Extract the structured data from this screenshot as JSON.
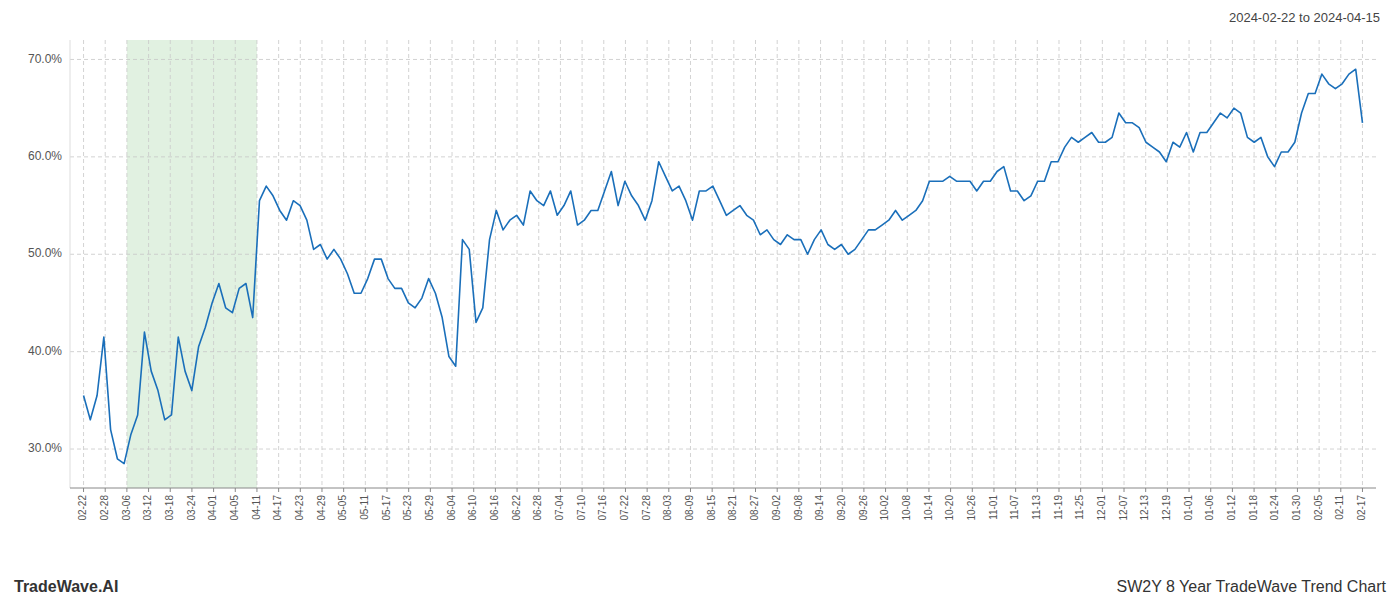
{
  "chart_data": {
    "type": "line",
    "title": "2024-02-22 to 2024-04-15",
    "annotations": [
      "TradeWave.AI",
      "SW2Y 8 Year TradeWave Trend Chart"
    ],
    "color": "#1a6fba",
    "grid": true,
    "span": {
      "from": "03-06",
      "to": "04-11",
      "color": "#c8e6c8"
    },
    "xlim": [
      -2,
      191
    ],
    "xticks": [
      {
        "value": 0,
        "label": "02-22"
      },
      {
        "value": 3.2034,
        "label": "02-28"
      },
      {
        "value": 6.4068,
        "label": "03-06"
      },
      {
        "value": 9.6102,
        "label": "03-12"
      },
      {
        "value": 12.8136,
        "label": "03-18"
      },
      {
        "value": 16.0169,
        "label": "03-24"
      },
      {
        "value": 19.2203,
        "label": "04-01"
      },
      {
        "value": 22.4237,
        "label": "04-05"
      },
      {
        "value": 25.6271,
        "label": "04-11"
      },
      {
        "value": 28.8305,
        "label": "04-17"
      },
      {
        "value": 32.0339,
        "label": "04-23"
      },
      {
        "value": 35.2373,
        "label": "04-29"
      },
      {
        "value": 38.4407,
        "label": "05-05"
      },
      {
        "value": 41.6441,
        "label": "05-11"
      },
      {
        "value": 44.8475,
        "label": "05-17"
      },
      {
        "value": 48.0508,
        "label": "05-23"
      },
      {
        "value": 51.2542,
        "label": "05-29"
      },
      {
        "value": 54.4576,
        "label": "06-04"
      },
      {
        "value": 57.661,
        "label": "06-10"
      },
      {
        "value": 60.8644,
        "label": "06-16"
      },
      {
        "value": 64.0678,
        "label": "06-22"
      },
      {
        "value": 67.2712,
        "label": "06-28"
      },
      {
        "value": 70.4746,
        "label": "07-04"
      },
      {
        "value": 73.678,
        "label": "07-10"
      },
      {
        "value": 76.8814,
        "label": "07-16"
      },
      {
        "value": 80.0847,
        "label": "07-22"
      },
      {
        "value": 83.2881,
        "label": "07-28"
      },
      {
        "value": 86.4915,
        "label": "08-03"
      },
      {
        "value": 89.6949,
        "label": "08-09"
      },
      {
        "value": 92.8983,
        "label": "08-15"
      },
      {
        "value": 96.1017,
        "label": "08-21"
      },
      {
        "value": 99.3051,
        "label": "08-27"
      },
      {
        "value": 102.5085,
        "label": "09-02"
      },
      {
        "value": 105.7119,
        "label": "09-08"
      },
      {
        "value": 108.9153,
        "label": "09-14"
      },
      {
        "value": 112.1186,
        "label": "09-20"
      },
      {
        "value": 115.322,
        "label": "09-26"
      },
      {
        "value": 118.5254,
        "label": "10-02"
      },
      {
        "value": 121.7288,
        "label": "10-08"
      },
      {
        "value": 124.9322,
        "label": "10-14"
      },
      {
        "value": 128.1356,
        "label": "10-20"
      },
      {
        "value": 131.339,
        "label": "10-26"
      },
      {
        "value": 134.5424,
        "label": "11-01"
      },
      {
        "value": 137.7458,
        "label": "11-07"
      },
      {
        "value": 140.9492,
        "label": "11-13"
      },
      {
        "value": 144.1525,
        "label": "11-19"
      },
      {
        "value": 147.3559,
        "label": "11-25"
      },
      {
        "value": 150.5593,
        "label": "12-01"
      },
      {
        "value": 153.7627,
        "label": "12-07"
      },
      {
        "value": 156.9661,
        "label": "12-13"
      },
      {
        "value": 160.1695,
        "label": "12-19"
      },
      {
        "value": 163.3729,
        "label": "01-01"
      },
      {
        "value": 166.5763,
        "label": "01-06"
      },
      {
        "value": 169.7797,
        "label": "01-12"
      },
      {
        "value": 172.9831,
        "label": "01-18"
      },
      {
        "value": 176.1864,
        "label": "01-24"
      },
      {
        "value": 179.3898,
        "label": "01-30"
      },
      {
        "value": 182.5932,
        "label": "02-05"
      },
      {
        "value": 185.7966,
        "label": "02-11"
      },
      {
        "value": 189,
        "label": "02-17"
      }
    ],
    "ylim": [
      26.0,
      72.0
    ],
    "yticks": [
      {
        "value": 30.0,
        "label": "30.0%"
      },
      {
        "value": 40.0,
        "label": "40.0%"
      },
      {
        "value": 50.0,
        "label": "50.0%"
      },
      {
        "value": 60.0,
        "label": "60.0%"
      },
      {
        "value": 70.0,
        "label": "70.0%"
      }
    ],
    "values": [
      35.5,
      33.0,
      35.5,
      41.5,
      32.0,
      29.0,
      28.5,
      31.5,
      33.5,
      42.0,
      38.0,
      36.0,
      33.0,
      33.5,
      41.5,
      38.0,
      36.0,
      40.5,
      42.5,
      45.0,
      47.0,
      44.5,
      44.0,
      46.5,
      47.0,
      43.5,
      55.5,
      57.0,
      56.0,
      54.5,
      53.5,
      55.5,
      55.0,
      53.5,
      50.5,
      51.0,
      49.5,
      50.5,
      49.5,
      48.0,
      46.0,
      46.0,
      47.5,
      49.5,
      49.5,
      47.5,
      46.5,
      46.5,
      45.0,
      44.5,
      45.5,
      47.5,
      46.0,
      43.5,
      39.5,
      38.5,
      51.5,
      50.5,
      43.0,
      44.5,
      51.5,
      54.5,
      52.5,
      53.5,
      54.0,
      53.0,
      56.5,
      55.5,
      55.0,
      56.5,
      54.0,
      55.0,
      56.5,
      53.0,
      53.5,
      54.5,
      54.5,
      56.5,
      58.5,
      55.0,
      57.5,
      56.0,
      55.0,
      53.5,
      55.5,
      59.5,
      58.0,
      56.5,
      57.0,
      55.5,
      53.5,
      56.5,
      56.5,
      57.0,
      55.5,
      54.0,
      54.5,
      55.0,
      54.0,
      53.5,
      52.0,
      52.5,
      51.5,
      51.0,
      52.0,
      51.5,
      51.5,
      50.0,
      51.5,
      52.5,
      51.0,
      50.5,
      51.0,
      50.0,
      50.5,
      51.5,
      52.5,
      52.5,
      53.0,
      53.5,
      54.5,
      53.5,
      54.0,
      54.5,
      55.5,
      57.5,
      57.5,
      57.5,
      58.0,
      57.5,
      57.5,
      57.5,
      56.5,
      57.5,
      57.5,
      58.5,
      59.0,
      56.5,
      56.5,
      55.5,
      56.0,
      57.5,
      57.5,
      59.5,
      59.5,
      61.0,
      62.0,
      61.5,
      62.0,
      62.5,
      61.5,
      61.5,
      62.0,
      64.5,
      63.5,
      63.5,
      63.0,
      61.5,
      61.0,
      60.5,
      59.5,
      61.5,
      61.0,
      62.5,
      60.5,
      62.5,
      62.5,
      63.5,
      64.5,
      64.0,
      65.0,
      64.5,
      62.0,
      61.5,
      62.0,
      60.0,
      59.0,
      60.5,
      60.5,
      61.5,
      64.5,
      66.5,
      66.5,
      68.5,
      67.5,
      67.0,
      67.5,
      68.5,
      69.0,
      63.5
    ]
  }
}
